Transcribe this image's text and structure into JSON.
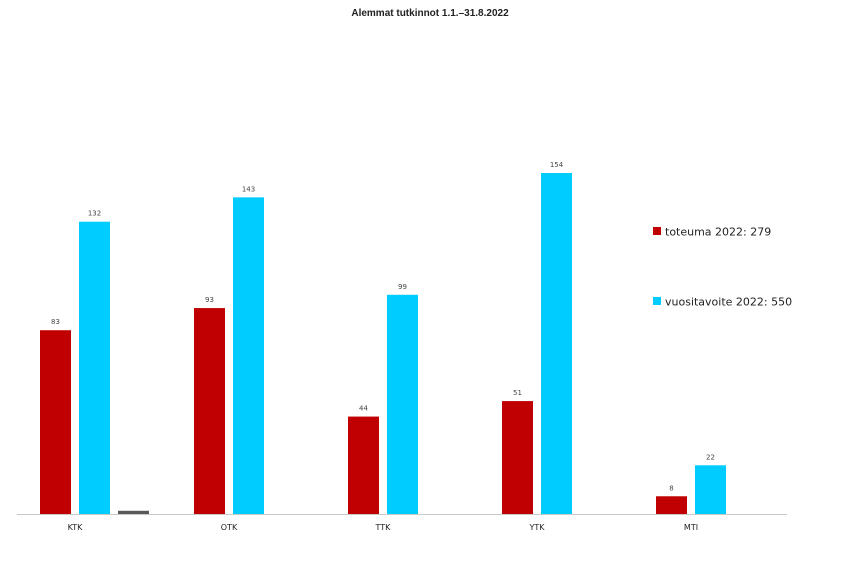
{
  "chart_data": {
    "type": "bar",
    "title": "Alemmat tutkinnot 1.1.–31.8.2022",
    "xlabel": "",
    "ylabel": "",
    "categories": [
      "KTK",
      "OTK",
      "TTK",
      "YTK",
      "MTI"
    ],
    "series": [
      {
        "name": "toteuma 2022: 279",
        "color": "#c00000",
        "values": [
          83,
          93,
          44,
          51,
          8
        ]
      },
      {
        "name": "vuositavoite 2022: 550",
        "color": "#00ccff",
        "values": [
          132,
          143,
          99,
          154,
          22
        ]
      }
    ],
    "extra_marks": [
      {
        "category": "KTK",
        "value": 1,
        "color": "#595959"
      }
    ],
    "ylim": [
      0,
      154
    ],
    "grid": false,
    "legend": "right"
  }
}
